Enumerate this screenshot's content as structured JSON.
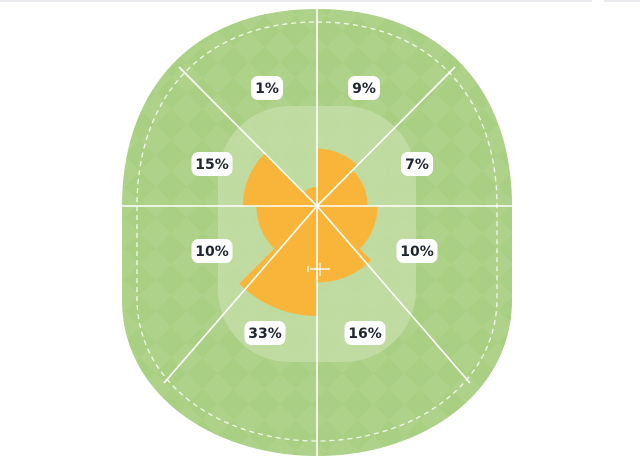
{
  "chart_data": {
    "type": "wagon-wheel",
    "zones": [
      {
        "label": "9%",
        "value": 9
      },
      {
        "label": "7%",
        "value": 7
      },
      {
        "label": "10%",
        "value": 10
      },
      {
        "label": "16%",
        "value": 16
      },
      {
        "label": "33%",
        "value": 33
      },
      {
        "label": "10%",
        "value": 10
      },
      {
        "label": "15%",
        "value": 15
      },
      {
        "label": "1%",
        "value": 1
      }
    ],
    "max_value": 33
  },
  "colors": {
    "outfield": "#a9cf82",
    "infield": "#c7dfa9",
    "pitch": "#dcebc8",
    "wedge": "#f9b53a",
    "lines": "#ffffff",
    "label_text": "#1f2630"
  }
}
